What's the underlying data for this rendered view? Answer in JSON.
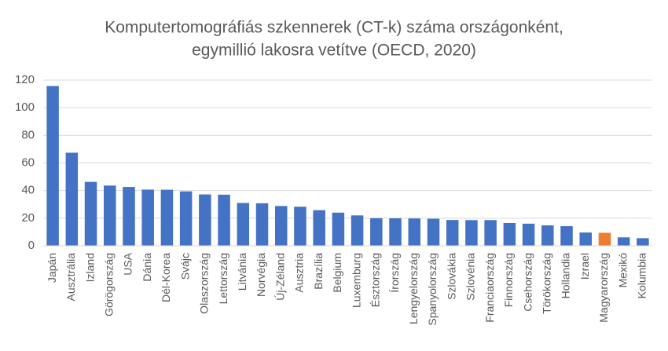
{
  "chart_data": {
    "type": "bar",
    "title": [
      "Komputertomográfiás szkennerek (CT-k) száma országonként,",
      "egymillió lakosra vetítve (OECD, 2020)"
    ],
    "categories": [
      "Japán",
      "Ausztrália",
      "Izland",
      "Görögország",
      "USA",
      "Dánia",
      "Dél-Korea",
      "Svájc",
      "Olaszország",
      "Lettország",
      "Litvánia",
      "Norvégia",
      "Új-Zéland",
      "Ausztria",
      "Brazília",
      "Belgium",
      "Luxemburg",
      "Észtország",
      "Írország",
      "Lengyelország",
      "Spanyolország",
      "Szlovákia",
      "Szlovénia",
      "Franciaország",
      "Finnország",
      "Csehország",
      "Törökország",
      "Hollandia",
      "Izrael",
      "Magyarország",
      "Mexikó",
      "Kolumbia"
    ],
    "values": [
      115.7,
      67.4,
      46.3,
      43.6,
      42.6,
      40.7,
      40.6,
      39.4,
      37.2,
      37.0,
      31.0,
      30.8,
      28.8,
      28.3,
      25.8,
      24.0,
      22.0,
      20.0,
      19.9,
      19.8,
      19.6,
      18.7,
      18.6,
      18.6,
      16.5,
      16.0,
      14.8,
      14.2,
      9.6,
      9.4,
      6.1,
      5.5
    ],
    "colors": [
      "#4472c4",
      "#4472c4",
      "#4472c4",
      "#4472c4",
      "#4472c4",
      "#4472c4",
      "#4472c4",
      "#4472c4",
      "#4472c4",
      "#4472c4",
      "#4472c4",
      "#4472c4",
      "#4472c4",
      "#4472c4",
      "#4472c4",
      "#4472c4",
      "#4472c4",
      "#4472c4",
      "#4472c4",
      "#4472c4",
      "#4472c4",
      "#4472c4",
      "#4472c4",
      "#4472c4",
      "#4472c4",
      "#4472c4",
      "#4472c4",
      "#4472c4",
      "#4472c4",
      "#ed7d31",
      "#4472c4",
      "#4472c4"
    ],
    "ylim": [
      0,
      120
    ],
    "yticks": [
      0,
      20,
      40,
      60,
      80,
      100,
      120
    ],
    "grid": true
  }
}
